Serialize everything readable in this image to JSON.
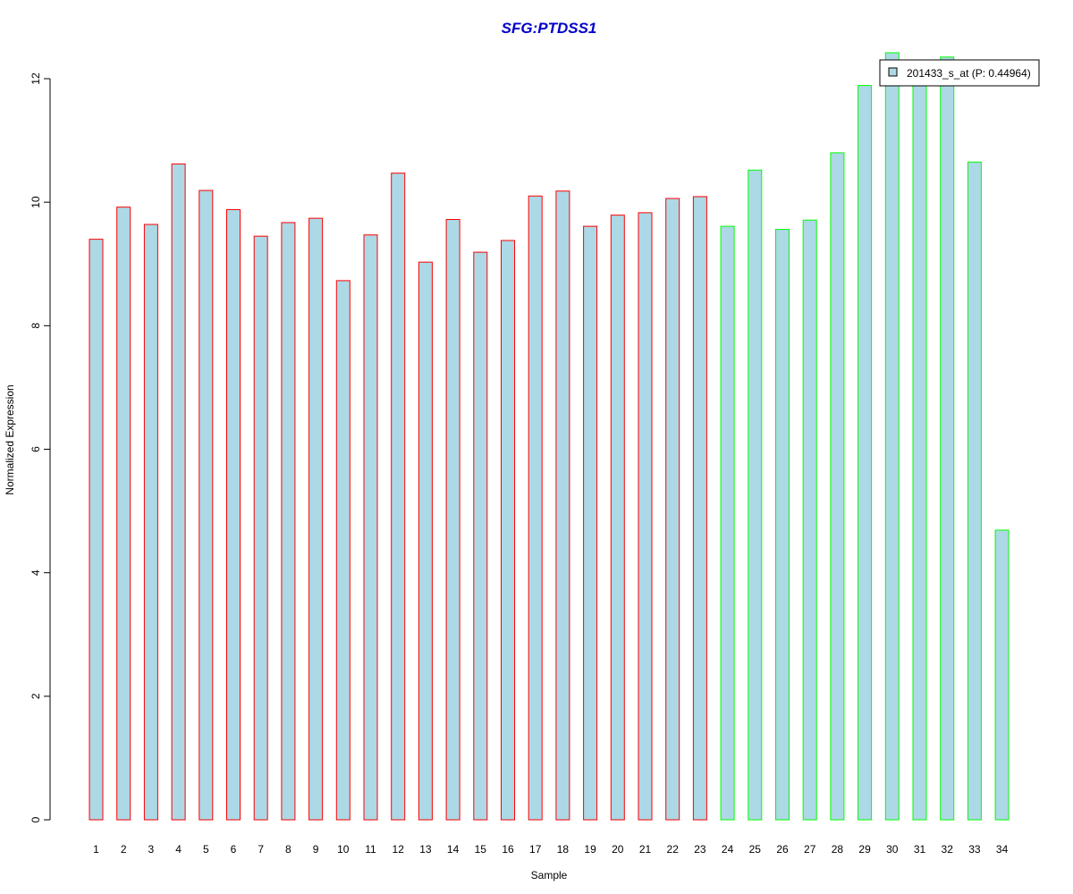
{
  "chart_data": {
    "type": "bar",
    "title": "SFG:PTDSS1",
    "xlabel": "Sample",
    "ylabel": "Normalized Expression",
    "ylim": [
      0,
      12
    ],
    "yticks": [
      "0",
      "2",
      "4",
      "6",
      "8",
      "10",
      "12"
    ],
    "categories": [
      "1",
      "2",
      "3",
      "4",
      "5",
      "6",
      "7",
      "8",
      "9",
      "10",
      "11",
      "12",
      "13",
      "14",
      "15",
      "16",
      "17",
      "18",
      "19",
      "20",
      "21",
      "22",
      "23",
      "24",
      "25",
      "26",
      "27",
      "28",
      "29",
      "30",
      "31",
      "32",
      "33",
      "34"
    ],
    "series": [
      {
        "name": "201433_s_at (P: 0.44964)",
        "values": [
          9.4,
          9.92,
          9.64,
          10.62,
          10.19,
          9.88,
          9.45,
          9.67,
          9.74,
          8.73,
          9.47,
          10.47,
          9.03,
          9.72,
          9.19,
          9.38,
          10.1,
          10.18,
          9.61,
          9.79,
          9.83,
          10.06,
          10.09,
          9.61,
          10.52,
          9.56,
          9.71,
          10.8,
          11.89,
          12.42,
          12.24,
          12.35,
          10.65,
          4.69
        ],
        "fill": "#add8e6",
        "border_colors": [
          "#ff0000",
          "#ff0000",
          "#ff0000",
          "#ff0000",
          "#ff0000",
          "#ff0000",
          "#ff0000",
          "#ff0000",
          "#ff0000",
          "#ff0000",
          "#ff0000",
          "#ff0000",
          "#ff0000",
          "#ff0000",
          "#ff0000",
          "#ff0000",
          "#ff0000",
          "#ff0000",
          "#ff0000",
          "#ff0000",
          "#ff0000",
          "#ff0000",
          "#ff0000",
          "#00ff00",
          "#00ff00",
          "#00ff00",
          "#00ff00",
          "#00ff00",
          "#00ff00",
          "#00ff00",
          "#00ff00",
          "#00ff00",
          "#00ff00",
          "#00ff00"
        ]
      }
    ],
    "legend": {
      "label": "201433_s_at (P: 0.44964)",
      "placement": "top-right"
    },
    "grid": false,
    "title_color": "#0000cc"
  }
}
